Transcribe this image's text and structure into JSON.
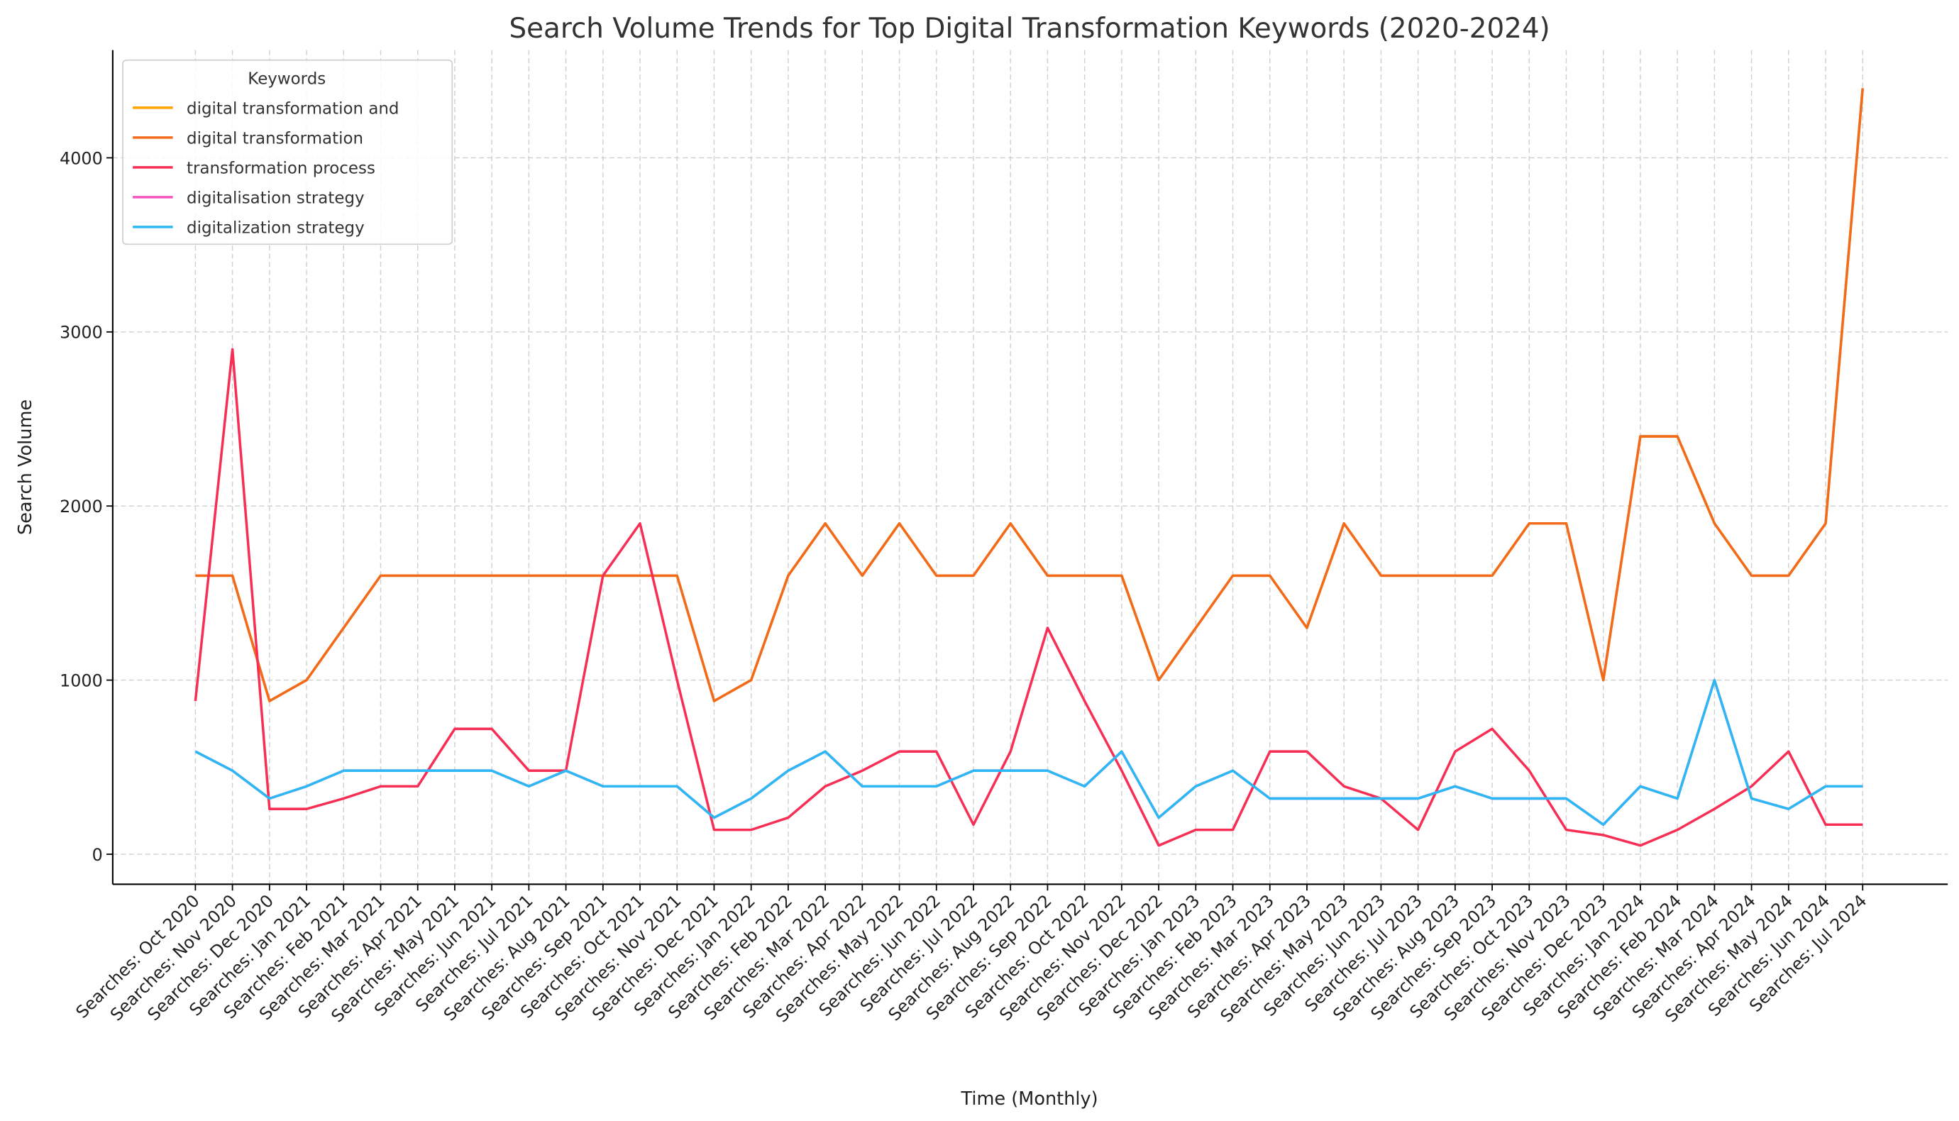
{
  "chart_data": {
    "type": "line",
    "title": "Search Volume Trends for Top Digital Transformation Keywords (2020-2024)",
    "xlabel": "Time (Monthly)",
    "ylabel": "Search Volume",
    "ylim": [
      -170,
      4620
    ],
    "yticks": [
      0,
      1000,
      2000,
      3000,
      4000
    ],
    "grid": true,
    "legend": {
      "title": "Keywords",
      "placement": "top-left"
    },
    "categories": [
      "Searches: Oct 2020",
      "Searches: Nov 2020",
      "Searches: Dec 2020",
      "Searches: Jan 2021",
      "Searches: Feb 2021",
      "Searches: Mar 2021",
      "Searches: Apr 2021",
      "Searches: May 2021",
      "Searches: Jun 2021",
      "Searches: Jul 2021",
      "Searches: Aug 2021",
      "Searches: Sep 2021",
      "Searches: Oct 2021",
      "Searches: Nov 2021",
      "Searches: Dec 2021",
      "Searches: Jan 2022",
      "Searches: Feb 2022",
      "Searches: Mar 2022",
      "Searches: Apr 2022",
      "Searches: May 2022",
      "Searches: Jun 2022",
      "Searches: Jul 2022",
      "Searches: Aug 2022",
      "Searches: Sep 2022",
      "Searches: Oct 2022",
      "Searches: Nov 2022",
      "Searches: Dec 2022",
      "Searches: Jan 2023",
      "Searches: Feb 2023",
      "Searches: Mar 2023",
      "Searches: Apr 2023",
      "Searches: May 2023",
      "Searches: Jun 2023",
      "Searches: Jul 2023",
      "Searches: Aug 2023",
      "Searches: Sep 2023",
      "Searches: Oct 2023",
      "Searches: Nov 2023",
      "Searches: Dec 2023",
      "Searches: Jan 2024",
      "Searches: Feb 2024",
      "Searches: Mar 2024",
      "Searches: Apr 2024",
      "Searches: May 2024",
      "Searches: Jun 2024",
      "Searches: Jul 2024"
    ],
    "series": [
      {
        "name": "digital transformation and",
        "color": "#FFA500",
        "values": [
          1600,
          1600,
          880,
          1000,
          1300,
          1600,
          1600,
          1600,
          1600,
          1600,
          1600,
          1600,
          1600,
          1600,
          880,
          1000,
          1600,
          1900,
          1600,
          1900,
          1600,
          1600,
          1900,
          1600,
          1600,
          1600,
          1000,
          1300,
          1600,
          1600,
          1300,
          1900,
          1600,
          1600,
          1600,
          1600,
          1900,
          1900,
          1000,
          2400,
          2400,
          1900,
          1600,
          1600,
          1900,
          4400
        ]
      },
      {
        "name": "digital transformation",
        "color": "#F26B1D",
        "values": [
          1600,
          1600,
          880,
          1000,
          1300,
          1600,
          1600,
          1600,
          1600,
          1600,
          1600,
          1600,
          1600,
          1600,
          880,
          1000,
          1600,
          1900,
          1600,
          1900,
          1600,
          1600,
          1900,
          1600,
          1600,
          1600,
          1000,
          1300,
          1600,
          1600,
          1300,
          1900,
          1600,
          1600,
          1600,
          1600,
          1900,
          1900,
          1000,
          2400,
          2400,
          1900,
          1600,
          1600,
          1900,
          4400
        ]
      },
      {
        "name": "transformation process",
        "color": "#F72F55",
        "values": [
          880,
          2900,
          260,
          260,
          320,
          390,
          390,
          720,
          720,
          480,
          480,
          1600,
          1900,
          1000,
          140,
          140,
          210,
          390,
          480,
          590,
          590,
          170,
          590,
          1300,
          880,
          480,
          50,
          140,
          140,
          590,
          590,
          390,
          320,
          140,
          590,
          720,
          480,
          140,
          110,
          50,
          140,
          260,
          390,
          590,
          170,
          170
        ]
      },
      {
        "name": "digitalisation strategy",
        "color": "#F754C0",
        "values": [
          590,
          480,
          320,
          390,
          480,
          480,
          480,
          480,
          480,
          390,
          480,
          390,
          390,
          390,
          210,
          320,
          480,
          590,
          390,
          390,
          390,
          480,
          480,
          480,
          390,
          590,
          210,
          390,
          480,
          320,
          320,
          320,
          320,
          320,
          390,
          320,
          320,
          320,
          170,
          390,
          320,
          1000,
          320,
          260,
          390,
          390
        ]
      },
      {
        "name": "digitalization strategy",
        "color": "#2BB8F5",
        "values": [
          590,
          480,
          320,
          390,
          480,
          480,
          480,
          480,
          480,
          390,
          480,
          390,
          390,
          390,
          210,
          320,
          480,
          590,
          390,
          390,
          390,
          480,
          480,
          480,
          390,
          590,
          210,
          390,
          480,
          320,
          320,
          320,
          320,
          320,
          390,
          320,
          320,
          320,
          170,
          390,
          320,
          1000,
          320,
          260,
          390,
          390
        ]
      }
    ]
  }
}
